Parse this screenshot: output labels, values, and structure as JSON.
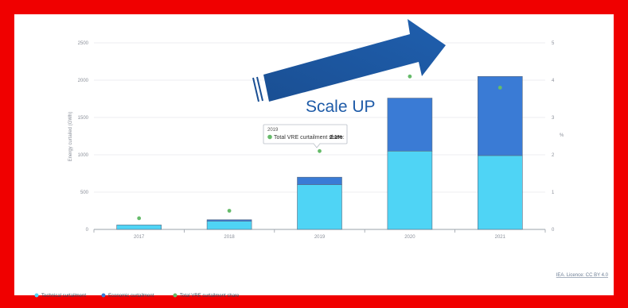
{
  "chart_data": {
    "type": "bar",
    "stacked": true,
    "categories": [
      "2017",
      "2018",
      "2019",
      "2020",
      "2021"
    ],
    "series": [
      {
        "name": "Technical curtailment",
        "values": [
          60,
          110,
          600,
          1050,
          990
        ],
        "color": "#4fd4f5"
      },
      {
        "name": "Economic curtailment",
        "values": [
          0,
          20,
          100,
          710,
          1060
        ],
        "color": "#3a7bd5"
      }
    ],
    "line_series": {
      "name": "Total VRE curtailment share",
      "values": [
        0.3,
        0.5,
        2.1,
        4.1,
        3.8
      ],
      "color": "#66bb6a"
    },
    "y_left": {
      "label": "Energy curtailed (GWh)",
      "ticks": [
        0,
        500,
        1000,
        1500,
        2000,
        2500
      ],
      "lim": [
        0,
        2500
      ]
    },
    "y_right": {
      "label": "%",
      "ticks": [
        0,
        1,
        2,
        3,
        4,
        5
      ],
      "lim": [
        0,
        5
      ]
    },
    "tooltip": {
      "year": "2019",
      "label": "Total VRE curtailment share:",
      "value": "2.1%"
    },
    "annotation": "Scale UP",
    "credit": "IEA. Licence: CC BY 4.0",
    "legend_position": "bottom-left"
  }
}
